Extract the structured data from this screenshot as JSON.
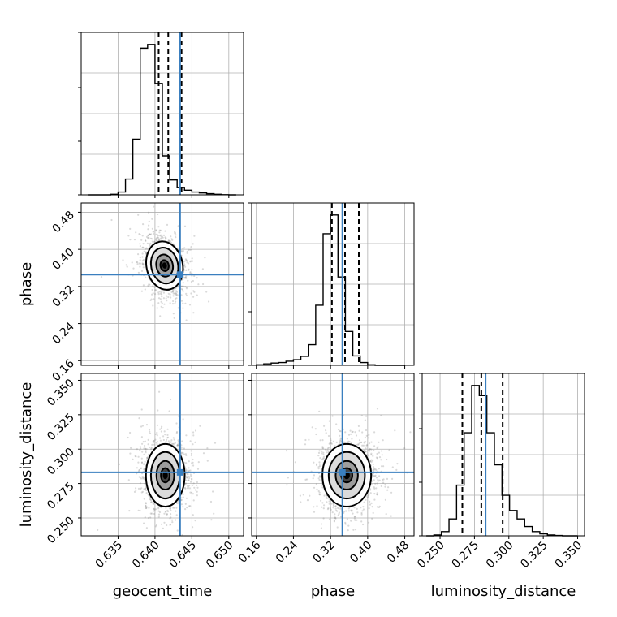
{
  "chart_data": {
    "type": "corner",
    "parameters": [
      {
        "name": "geocent_time",
        "label": "geocent_time",
        "range": [
          0.63,
          0.652
        ],
        "ticks": [
          "0.635",
          "0.640",
          "0.645",
          "0.650"
        ],
        "truth": 0.6434,
        "quantiles": [
          0.6405,
          0.6418,
          0.6436
        ]
      },
      {
        "name": "phase",
        "label": "phase",
        "range": [
          0.15,
          0.5
        ],
        "ticks": [
          "0.16",
          "0.24",
          "0.32",
          "0.40",
          "0.48"
        ],
        "truth": 0.3455,
        "quantiles": [
          0.323,
          0.3512,
          0.381
        ]
      },
      {
        "name": "luminosity_distance",
        "label": "luminosity_distance",
        "range": [
          0.237,
          0.355
        ],
        "ticks": [
          "0.250",
          "0.275",
          "0.300",
          "0.325",
          "0.350"
        ],
        "truth": 0.2831,
        "quantiles": [
          0.2662,
          0.28,
          0.2955
        ]
      }
    ],
    "histograms": [
      {
        "param": "geocent_time",
        "edges": [
          0.631,
          0.632,
          0.633,
          0.634,
          0.635,
          0.636,
          0.637,
          0.638,
          0.639,
          0.64,
          0.641,
          0.642,
          0.643,
          0.644,
          0.645,
          0.646,
          0.647,
          0.648,
          0.649,
          0.65,
          0.651
        ],
        "counts": [
          0,
          0,
          0,
          3,
          15,
          85,
          300,
          790,
          810,
          600,
          210,
          80,
          40,
          25,
          15,
          10,
          6,
          3,
          1,
          0
        ]
      },
      {
        "param": "phase",
        "edges": [
          0.16,
          0.176,
          0.192,
          0.208,
          0.224,
          0.24,
          0.256,
          0.272,
          0.288,
          0.304,
          0.32,
          0.336,
          0.352,
          0.368,
          0.384,
          0.4,
          0.416,
          0.432,
          0.448,
          0.464,
          0.48
        ],
        "counts": [
          3,
          8,
          12,
          15,
          22,
          30,
          48,
          110,
          320,
          700,
          800,
          470,
          180,
          50,
          15,
          3,
          0,
          0,
          0,
          0
        ]
      },
      {
        "param": "luminosity_distance",
        "edges": [
          0.24,
          0.2455,
          0.251,
          0.2565,
          0.262,
          0.2675,
          0.273,
          0.2785,
          0.284,
          0.2895,
          0.295,
          0.3005,
          0.306,
          0.3115,
          0.317,
          0.3225,
          0.328,
          0.3335,
          0.339,
          0.3445,
          0.35
        ],
        "counts": [
          0,
          5,
          25,
          100,
          300,
          610,
          890,
          830,
          610,
          420,
          240,
          150,
          100,
          55,
          25,
          12,
          5,
          2,
          0,
          0
        ]
      }
    ],
    "scatter_panels": [
      {
        "x": "geocent_time",
        "y": "phase",
        "truth": [
          0.6434,
          0.3455
        ],
        "peak": [
          0.6413,
          0.365
        ],
        "sigma": [
          0.0014,
          0.03
        ],
        "rho": -0.3,
        "levels": [
          0.4,
          0.8,
          1.3,
          1.75
        ]
      },
      {
        "x": "geocent_time",
        "y": "luminosity_distance",
        "truth": [
          0.6434,
          0.2831
        ],
        "peak": [
          0.6414,
          0.281
        ],
        "sigma": [
          0.0015,
          0.013
        ],
        "rho": 0.0,
        "levels": [
          0.4,
          0.8,
          1.3,
          1.75
        ]
      },
      {
        "x": "phase",
        "y": "luminosity_distance",
        "truth": [
          0.3455,
          0.2831
        ],
        "peak": [
          0.355,
          0.281
        ],
        "sigma": [
          0.03,
          0.013
        ],
        "rho": 0.0,
        "levels": [
          0.4,
          0.8,
          1.3,
          1.75
        ]
      }
    ],
    "grid": true,
    "truth_color": "#3a7fbf",
    "histogram_color": "#000000"
  }
}
